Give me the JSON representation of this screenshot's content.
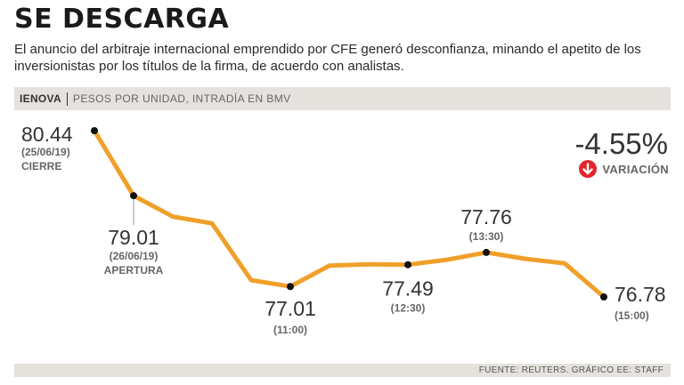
{
  "header": {
    "title": "SE DESCARGA",
    "subtitle": "El anuncio del arbitraje internacional emprendido por CFE generó desconfianza, minando el apetito de los inversionistas por los títulos de la firma, de acuerdo con analistas."
  },
  "band": {
    "ticker": "IENOVA",
    "description": "PESOS POR UNIDAD, INTRADÍA EN BMV"
  },
  "variation": {
    "value": "-4.55%",
    "label": "VARIACIÓN",
    "icon": "down-arrow-icon",
    "icon_color": "#e2262b"
  },
  "footer": {
    "source": "FUENTE: REUTERS. GRÁFICO EE: STAFF"
  },
  "colors": {
    "line": "#f0a02a",
    "marker": "#111111",
    "band": "#e5e2de"
  },
  "chart_data": {
    "type": "line",
    "title": "SE DESCARGA",
    "ylabel": "Pesos por unidad",
    "ylim": [
      76.5,
      80.7
    ],
    "series": [
      {
        "name": "IENOVA",
        "values": [
          80.44,
          79.01,
          78.55,
          78.4,
          77.15,
          77.01,
          77.47,
          77.5,
          77.49,
          77.6,
          77.76,
          77.62,
          77.52,
          76.78
        ]
      }
    ],
    "labeled_points": [
      {
        "index": 0,
        "value_text": "80.44",
        "sub": "(25/06/19)",
        "sub2": "CIERRE"
      },
      {
        "index": 1,
        "value_text": "79.01",
        "sub": "(26/06/19)",
        "sub2": "APERTURA"
      },
      {
        "index": 5,
        "value_text": "77.01",
        "sub": "(11:00)"
      },
      {
        "index": 8,
        "value_text": "77.49",
        "sub": "(12:30)"
      },
      {
        "index": 10,
        "value_text": "77.76",
        "sub": "(13:30)"
      },
      {
        "index": 13,
        "value_text": "76.78",
        "sub": "(15:00)"
      }
    ]
  }
}
